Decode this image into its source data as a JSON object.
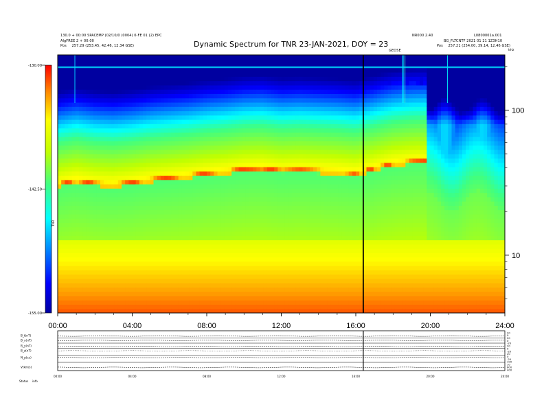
{
  "header": {
    "title": "Dynamic Spectrum for TNR 23-JAN-2021, DOY = 23",
    "left_line1": "130.0 + 00:00 SPACEMP (02/10/0 (0004) 0-FE 01 (2) EPC",
    "left_line2": "AlgFREE 2 + 00:00",
    "left_pos_label": "Pos",
    "left_pos_value": "257.29 (253.45, 42.46, 12.34 GSE)",
    "right_line1a": "NR000 2.40",
    "right_line1b": "L0800001a.001",
    "right_line2": "BG_FLTCNTF 2021 01 21 1Z3H10",
    "right_pos_label": "Pos",
    "right_pos_value": "257.21 (254.00, 39.14, 12.46 GSE)",
    "mark_label": "GEOSE"
  },
  "spectrogram": {
    "colorbar_label": "TNR",
    "colorbar_ticks": [
      "-130.00",
      "-142.50",
      "-155.00"
    ],
    "freq_label": "kHz",
    "freq_ticks": [
      "100",
      "10"
    ]
  },
  "chart_data": {
    "type": "heatmap",
    "title": "Dynamic Spectrum for TNR 23-JAN-2021, DOY = 23",
    "x_ticks": [
      "00:00",
      "04:00",
      "08:00",
      "12:00",
      "16:00",
      "20:00",
      "24:00"
    ],
    "x_range_hours": [
      0,
      24
    ],
    "y_scale": "log",
    "y_range_khz": [
      4,
      240
    ],
    "y_ticks_khz": [
      100,
      10
    ],
    "intensity_range": [
      -155.0,
      -130.0
    ],
    "intensity_ticks": [
      -130.0,
      -142.5,
      -155.0
    ],
    "colormap": [
      "#0000a0",
      "#0000ff",
      "#0080ff",
      "#00ffff",
      "#40ff80",
      "#80ff40",
      "#c0ff00",
      "#ffff00",
      "#ff8000",
      "#ff0000"
    ],
    "marker_hour": 16.4,
    "emission_ridge": [
      {
        "hour": 0.0,
        "khz": 31.0
      },
      {
        "hour": 1.0,
        "khz": 33.0
      },
      {
        "hour": 2.0,
        "khz": 31.5
      },
      {
        "hour": 3.0,
        "khz": 31.0
      },
      {
        "hour": 4.0,
        "khz": 32.0
      },
      {
        "hour": 5.0,
        "khz": 33.5
      },
      {
        "hour": 6.0,
        "khz": 34.5
      },
      {
        "hour": 7.0,
        "khz": 35.5
      },
      {
        "hour": 8.0,
        "khz": 37.0
      },
      {
        "hour": 9.0,
        "khz": 38.0
      },
      {
        "hour": 10.0,
        "khz": 39.5
      },
      {
        "hour": 11.0,
        "khz": 40.0
      },
      {
        "hour": 12.0,
        "khz": 38.5
      },
      {
        "hour": 13.0,
        "khz": 39.0
      },
      {
        "hour": 14.0,
        "khz": 38.5
      },
      {
        "hour": 15.0,
        "khz": 38.0
      },
      {
        "hour": 16.0,
        "khz": 37.0
      },
      {
        "hour": 17.0,
        "khz": 40.0
      },
      {
        "hour": 18.0,
        "khz": 43.0
      },
      {
        "hour": 19.0,
        "khz": 44.5
      },
      {
        "hour": 19.9,
        "khz": 45.0
      }
    ]
  },
  "bottom_panel": {
    "labels": [
      "B_t(nT)",
      "B_x(nT)",
      "B_y(nT)",
      "B_z(nT)",
      "N_p(cc)",
      "V(km/s)"
    ],
    "right_ticks": [
      "20",
      "0",
      "20",
      "0",
      "-20",
      "20",
      "0",
      "-20",
      "20",
      "0",
      "-20",
      "100",
      "10",
      "800",
      "400"
    ],
    "x_ticks": [
      "00:00",
      "04:00",
      "08:00",
      "12:00",
      "16:00",
      "20:00",
      "24:00"
    ],
    "status_label": "Status",
    "status_value": "info"
  }
}
